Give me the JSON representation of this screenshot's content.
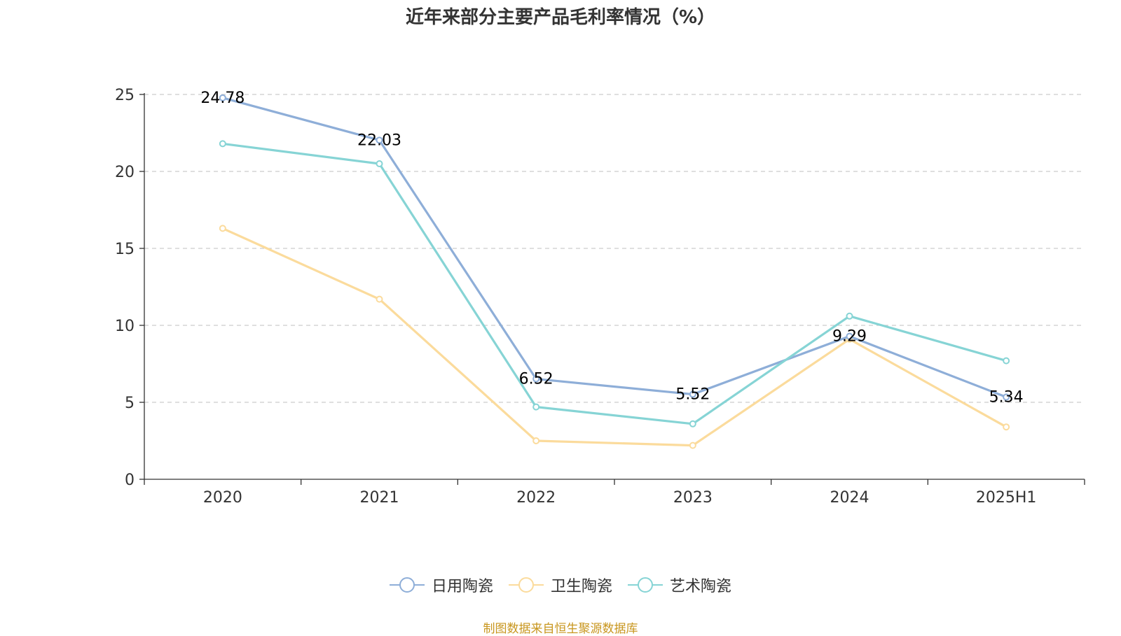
{
  "title": "近年来部分主要产品毛利率情况（%）",
  "source": "制图数据来自恒生聚源数据库",
  "chart_data": {
    "type": "line",
    "categories": [
      "2020",
      "2021",
      "2022",
      "2023",
      "2024",
      "2025H1"
    ],
    "ylim": [
      0,
      25
    ],
    "yticks": [
      "0",
      "5",
      "10",
      "15",
      "20",
      "25"
    ],
    "grid": true,
    "legend_position": "bottom",
    "series": [
      {
        "name": "日用陶瓷",
        "color": "#8eaed8",
        "values": [
          24.78,
          22.03,
          6.52,
          5.52,
          9.29,
          5.34
        ],
        "labels": [
          "24.78",
          "22.03",
          "6.52",
          "5.52",
          "9.29",
          "5.34"
        ]
      },
      {
        "name": "卫生陶瓷",
        "color": "#fbdb9c",
        "values": [
          16.3,
          11.7,
          2.5,
          2.2,
          9.1,
          3.4
        ]
      },
      {
        "name": "艺术陶瓷",
        "color": "#86d4d5",
        "values": [
          21.8,
          20.5,
          4.7,
          3.6,
          10.6,
          7.7
        ]
      }
    ]
  }
}
